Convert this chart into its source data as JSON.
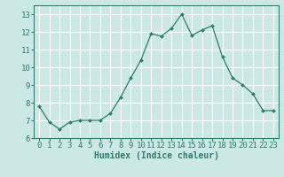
{
  "x": [
    0,
    1,
    2,
    3,
    4,
    5,
    6,
    7,
    8,
    9,
    10,
    11,
    12,
    13,
    14,
    15,
    16,
    17,
    18,
    19,
    20,
    21,
    22,
    23
  ],
  "y": [
    7.8,
    6.9,
    6.5,
    6.9,
    7.0,
    7.0,
    7.0,
    7.4,
    8.3,
    9.4,
    10.4,
    11.9,
    11.75,
    12.2,
    13.0,
    11.8,
    12.1,
    12.35,
    10.6,
    9.4,
    9.0,
    8.5,
    7.55,
    7.55
  ],
  "line_color": "#2e7d6e",
  "marker": "D",
  "marker_size": 2.0,
  "bg_color": "#cce8e4",
  "grid_color": "#ffffff",
  "xlabel": "Humidex (Indice chaleur)",
  "xlabel_fontsize": 7,
  "tick_fontsize": 6.5,
  "ylim": [
    6,
    13.5
  ],
  "xlim": [
    -0.5,
    23.5
  ],
  "yticks": [
    6,
    7,
    8,
    9,
    10,
    11,
    12,
    13
  ],
  "xticks": [
    0,
    1,
    2,
    3,
    4,
    5,
    6,
    7,
    8,
    9,
    10,
    11,
    12,
    13,
    14,
    15,
    16,
    17,
    18,
    19,
    20,
    21,
    22,
    23
  ]
}
